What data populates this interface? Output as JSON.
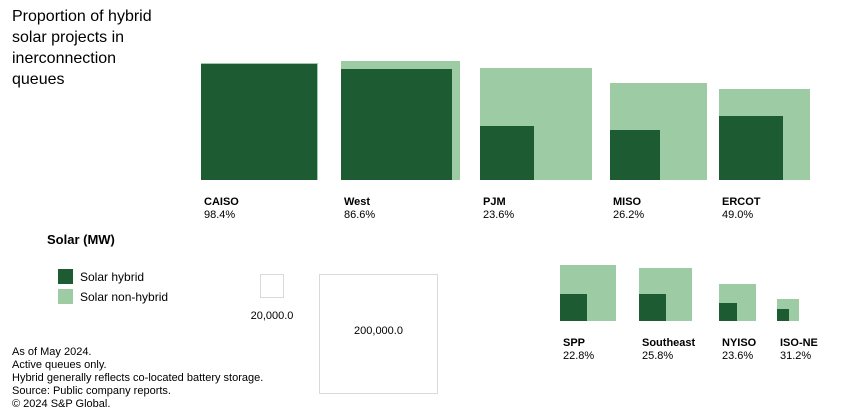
{
  "title": "Proportion of hybrid\nsolar projects in\ninerconnection\nqueues",
  "colors": {
    "solar_hybrid": "#1d5b32",
    "solar_non_hybrid": "#9ccba4",
    "size_legend_border": "#d9d9d9",
    "text": "#000000",
    "background": "#ffffff"
  },
  "legend": {
    "heading": "Solar (MW)",
    "items": [
      {
        "id": "solar-hybrid",
        "label": "Solar hybrid"
      },
      {
        "id": "solar-non-hybrid",
        "label": "Solar non-hybrid"
      }
    ]
  },
  "size_legend": {
    "small_label": "20,000.0",
    "large_label": "200,000.0",
    "small_value": 20000,
    "large_value": 200000
  },
  "footnotes": [
    "As of May 2024.",
    "Active queues only.",
    "Hybrid generally reflects co-located battery storage.",
    "Source: Public company reports.",
    "© 2024 S&P Global."
  ],
  "chart_data": {
    "type": "area",
    "variant": "proportional-square",
    "title": "Proportion of hybrid solar projects in inerconnection queues",
    "unit": "MW",
    "legend_position": "bottom-left",
    "note": "Outer light square area = total solar MW in queue (per size legend); inner dark square area = hybrid share of that total.",
    "size_scale_refs": [
      20000,
      200000
    ],
    "regions": [
      {
        "name": "CAISO",
        "hybrid_pct": 98.4,
        "pct_label": "98.4%",
        "total_solar_mw_est": 193000
      },
      {
        "name": "West",
        "hybrid_pct": 86.6,
        "pct_label": "86.6%",
        "total_solar_mw_est": 200000
      },
      {
        "name": "PJM",
        "hybrid_pct": 23.6,
        "pct_label": "23.6%",
        "total_solar_mw_est": 177000
      },
      {
        "name": "MISO",
        "hybrid_pct": 26.2,
        "pct_label": "26.2%",
        "total_solar_mw_est": 133000
      },
      {
        "name": "ERCOT",
        "hybrid_pct": 49.0,
        "pct_label": "49.0%",
        "total_solar_mw_est": 117000
      },
      {
        "name": "SPP",
        "hybrid_pct": 22.8,
        "pct_label": "22.8%",
        "total_solar_mw_est": 44000
      },
      {
        "name": "Southeast",
        "hybrid_pct": 25.8,
        "pct_label": "25.8%",
        "total_solar_mw_est": 40000
      },
      {
        "name": "NYISO",
        "hybrid_pct": 23.6,
        "pct_label": "23.6%",
        "total_solar_mw_est": 19000
      },
      {
        "name": "ISO-NE",
        "hybrid_pct": 31.2,
        "pct_label": "31.2%",
        "total_solar_mw_est": 6800
      }
    ]
  }
}
